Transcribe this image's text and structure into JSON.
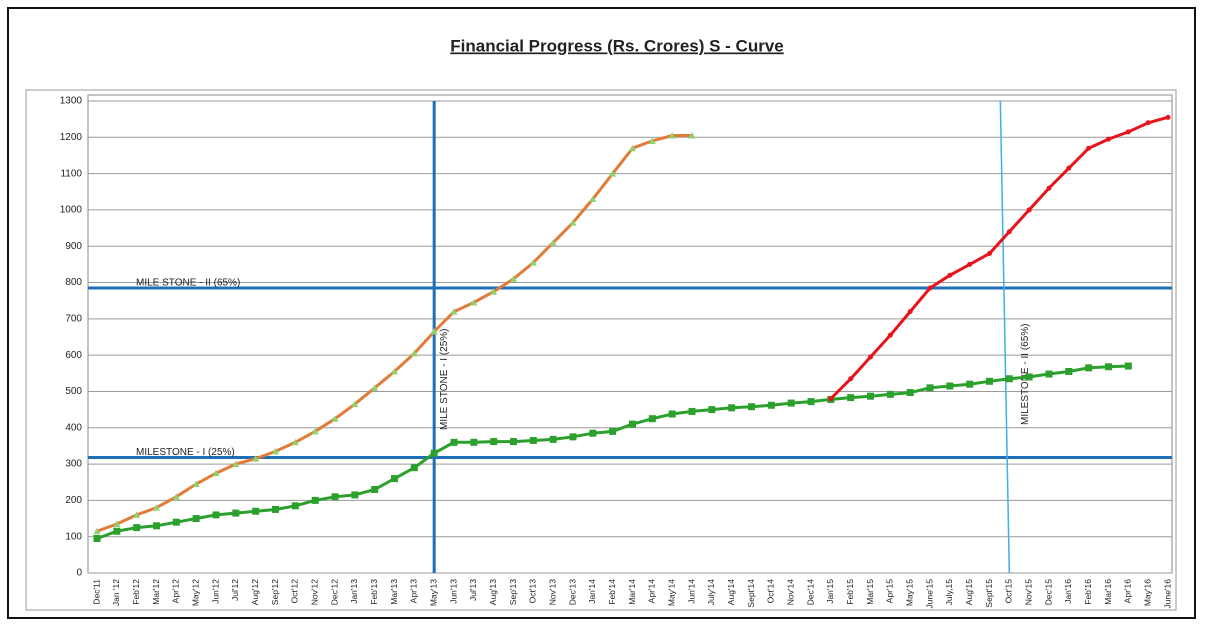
{
  "chart_data": {
    "type": "line",
    "title": "Financial Progress (Rs. Crores) S - Curve",
    "categories": [
      "Dec'11",
      "Jan '12",
      "Feb'12",
      "Mar'12",
      "Apr'12",
      "May'12",
      "Jun'12",
      "Jul'12",
      "Aug'12",
      "Sep'12",
      "Oct'12",
      "Nov'12",
      "Dec'12",
      "Jan'13",
      "Feb'13",
      "Mar'13",
      "Apr'13",
      "May'13",
      "Jun'13",
      "Jul'13",
      "Aug'13",
      "Sep'13",
      "Oct'13",
      "Nov'13",
      "Dec'13",
      "Jan'14",
      "Feb'14",
      "Mar'14",
      "Apr'14",
      "May'14",
      "Jun'14",
      "July'14",
      "Aug'14",
      "Sept'14",
      "Oct'14",
      "Nov'14",
      "Dec'14",
      "Jan'15",
      "Feb'15",
      "Mar'15",
      "Apr'15",
      "May'15",
      "June'15",
      "July,15",
      "Aug'15",
      "Sept'15",
      "Oct'15",
      "Nov'15",
      "Dec'15",
      "Jan'16",
      "Feb'16",
      "Mar'16",
      "Apr'16",
      "May'16",
      "June'16"
    ],
    "series": [
      {
        "color": "#e07b39",
        "marker_color": "#8fd16a",
        "marker": "triangle",
        "values": [
          115,
          135,
          160,
          180,
          210,
          245,
          275,
          300,
          315,
          335,
          360,
          390,
          425,
          465,
          510,
          555,
          605,
          665,
          720,
          745,
          775,
          810,
          855,
          910,
          965,
          1030,
          1100,
          1170,
          1190,
          1205,
          1205,
          null,
          null,
          null,
          null,
          null,
          null,
          null,
          null,
          null,
          null,
          null,
          null,
          null,
          null,
          null,
          null,
          null,
          null,
          null,
          null,
          null,
          null,
          null,
          null
        ]
      },
      {
        "color": "#2ca02c",
        "marker_color": "#2ca02c",
        "marker": "square",
        "values": [
          95,
          115,
          125,
          130,
          140,
          150,
          160,
          165,
          170,
          175,
          185,
          200,
          210,
          215,
          230,
          260,
          290,
          330,
          360,
          360,
          362,
          362,
          365,
          368,
          375,
          385,
          390,
          410,
          425,
          438,
          445,
          450,
          455,
          458,
          462,
          468,
          472,
          478,
          483,
          487,
          492,
          497,
          510,
          515,
          520,
          528,
          535,
          540,
          548,
          555,
          565,
          568,
          570,
          null,
          null
        ]
      },
      {
        "color": "#e8141c",
        "marker_color": "#e8141c",
        "marker": "dot",
        "values": [
          null,
          null,
          null,
          null,
          null,
          null,
          null,
          null,
          null,
          null,
          null,
          null,
          null,
          null,
          null,
          null,
          null,
          null,
          null,
          null,
          null,
          null,
          null,
          null,
          null,
          null,
          null,
          null,
          null,
          null,
          null,
          null,
          null,
          null,
          null,
          null,
          null,
          480,
          535,
          595,
          655,
          720,
          785,
          820,
          850,
          880,
          940,
          1000,
          1060,
          1115,
          1170,
          1195,
          1215,
          1240,
          1255
        ]
      }
    ],
    "ylim": [
      0,
      1300
    ],
    "yticks": [
      0,
      100,
      200,
      300,
      400,
      500,
      600,
      700,
      800,
      900,
      1000,
      1100,
      1200,
      1300
    ],
    "grid": true,
    "hlines": [
      {
        "text": "MILE STONE - II (65%)",
        "y": 785,
        "color": "#1f6fb8"
      },
      {
        "text": "MILESTONE - I (25%)",
        "y": 318,
        "color": "#1f6fb8"
      }
    ],
    "vlines": [
      {
        "text": "MILE STONE - I (25%)",
        "x": "May'13",
        "color": "#1f6fb8"
      },
      {
        "text": "MILESTONE - II (65%)",
        "x": "Oct'15",
        "color": "#3fb0e8"
      }
    ]
  }
}
